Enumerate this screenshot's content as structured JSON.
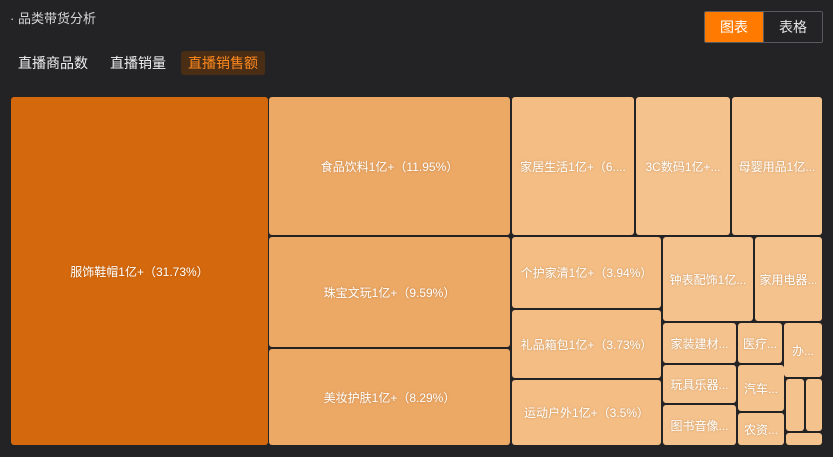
{
  "header": {
    "title": "· 品类带货分析"
  },
  "view_toggle": {
    "chart_label": "图表",
    "table_label": "表格"
  },
  "tabs": [
    {
      "label": "直播商品数"
    },
    {
      "label": "直播销量"
    },
    {
      "label": "直播销售额"
    }
  ],
  "colors": {
    "accent": "#ff7a00",
    "level1": "#d4680d",
    "level2": "#eca865",
    "level3": "#f3bd84",
    "level4": "#f4c28d"
  },
  "chart_data": {
    "type": "treemap",
    "metric": "直播销售额",
    "items": [
      {
        "label": "服饰鞋帽1亿+（31.73%）",
        "name": "服饰鞋帽",
        "value_text": "1亿+",
        "share": 31.73
      },
      {
        "label": "食品饮料1亿+（11.95%）",
        "name": "食品饮料",
        "value_text": "1亿+",
        "share": 11.95
      },
      {
        "label": "珠宝文玩1亿+（9.59%）",
        "name": "珠宝文玩",
        "value_text": "1亿+",
        "share": 9.59
      },
      {
        "label": "美妆护肤1亿+（8.29%）",
        "name": "美妆护肤",
        "value_text": "1亿+",
        "share": 8.29
      },
      {
        "label": "家居生活1亿+（6....",
        "name": "家居生活",
        "value_text": "1亿+"
      },
      {
        "label": "3C数码1亿+...",
        "name": "3C数码",
        "value_text": "1亿+"
      },
      {
        "label": "母婴用品1亿...",
        "name": "母婴用品",
        "value_text": "1亿"
      },
      {
        "label": "个护家清1亿+（3.94%）",
        "name": "个护家清",
        "value_text": "1亿+",
        "share": 3.94
      },
      {
        "label": "钟表配饰1亿...",
        "name": "钟表配饰",
        "value_text": "1亿"
      },
      {
        "label": "家用电器...",
        "name": "家用电器"
      },
      {
        "label": "礼品箱包1亿+（3.73%）",
        "name": "礼品箱包",
        "value_text": "1亿+",
        "share": 3.73
      },
      {
        "label": "家装建材...",
        "name": "家装建材"
      },
      {
        "label": "医疗...",
        "name": "医疗"
      },
      {
        "label": "办...",
        "name": "办"
      },
      {
        "label": "玩具乐器...",
        "name": "玩具乐器"
      },
      {
        "label": "汽车...",
        "name": "汽车"
      },
      {
        "label": "运动户外1亿+（3.5%）",
        "name": "运动户外",
        "value_text": "1亿+",
        "share": 3.5
      },
      {
        "label": "图书音像...",
        "name": "图书音像"
      },
      {
        "label": "农资...",
        "name": "农资"
      },
      {
        "label": "",
        "name": ""
      },
      {
        "label": "",
        "name": ""
      },
      {
        "label": "",
        "name": ""
      }
    ]
  }
}
